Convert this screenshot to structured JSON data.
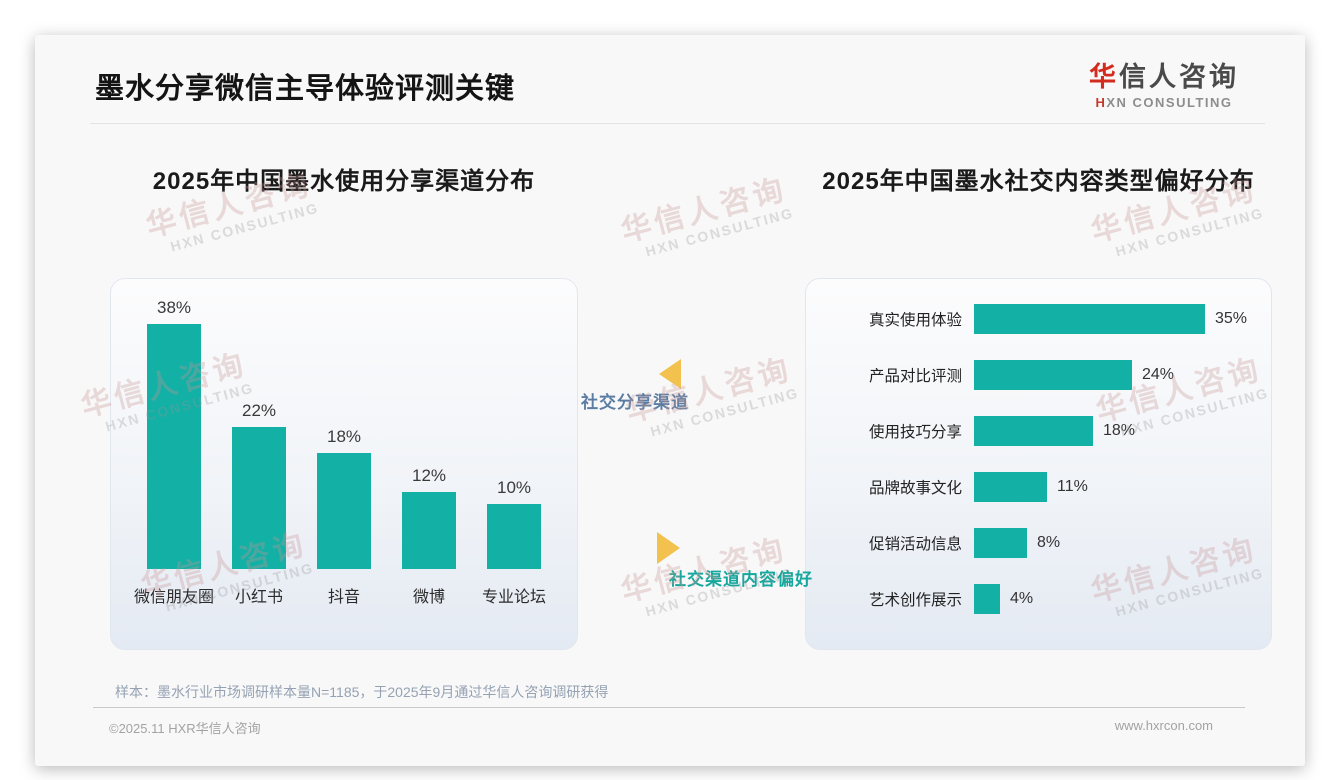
{
  "header": {
    "title": "墨水分享微信主导体验评测关键",
    "logo": {
      "accent": "华",
      "rest": "信人咨询",
      "sub_accent": "H",
      "sub_rest": "XN CONSULTING"
    }
  },
  "watermark": {
    "line1": "华信人咨询",
    "line2": "HXN CONSULTING"
  },
  "chart_data": [
    {
      "type": "bar",
      "orientation": "vertical",
      "title": "2025年中国墨水使用分享渠道分布",
      "categories": [
        "微信朋友圈",
        "小红书",
        "抖音",
        "微博",
        "专业论坛"
      ],
      "values": [
        38,
        22,
        18,
        12,
        10
      ],
      "unit": "%",
      "bar_color": "#12b0a5",
      "data_labels": true,
      "ylim": [
        0,
        40
      ],
      "grid": false,
      "legend": "none"
    },
    {
      "type": "bar",
      "orientation": "horizontal",
      "title": "2025年中国墨水社交内容类型偏好分布",
      "categories": [
        "真实使用体验",
        "产品对比评测",
        "使用技巧分享",
        "品牌故事文化",
        "促销活动信息",
        "艺术创作展示"
      ],
      "values": [
        35,
        24,
        18,
        11,
        8,
        4
      ],
      "unit": "%",
      "bar_color": "#12b0a5",
      "data_labels": true,
      "xlim": [
        0,
        40
      ],
      "grid": false,
      "legend": "none"
    }
  ],
  "connectors": {
    "top": {
      "label": "社交分享渠道",
      "direction": "left",
      "arrow_color": "#f2c14e",
      "text_color": "#5b7da3"
    },
    "bottom": {
      "label": "社交渠道内容偏好",
      "direction": "right",
      "arrow_color": "#f2c14e",
      "text_color": "#16a79e"
    }
  },
  "footer": {
    "note": "样本：墨水行业市场调研样本量N=1185，于2025年9月通过华信人咨询调研获得",
    "copyright": "©2025.11 HXR华信人咨询",
    "website": "www.hxrcon.com"
  },
  "colors": {
    "teal": "#12b0a5",
    "gold": "#f2c14e",
    "logo_red": "#d42b1f",
    "panel_border": "#e2e6ee"
  }
}
